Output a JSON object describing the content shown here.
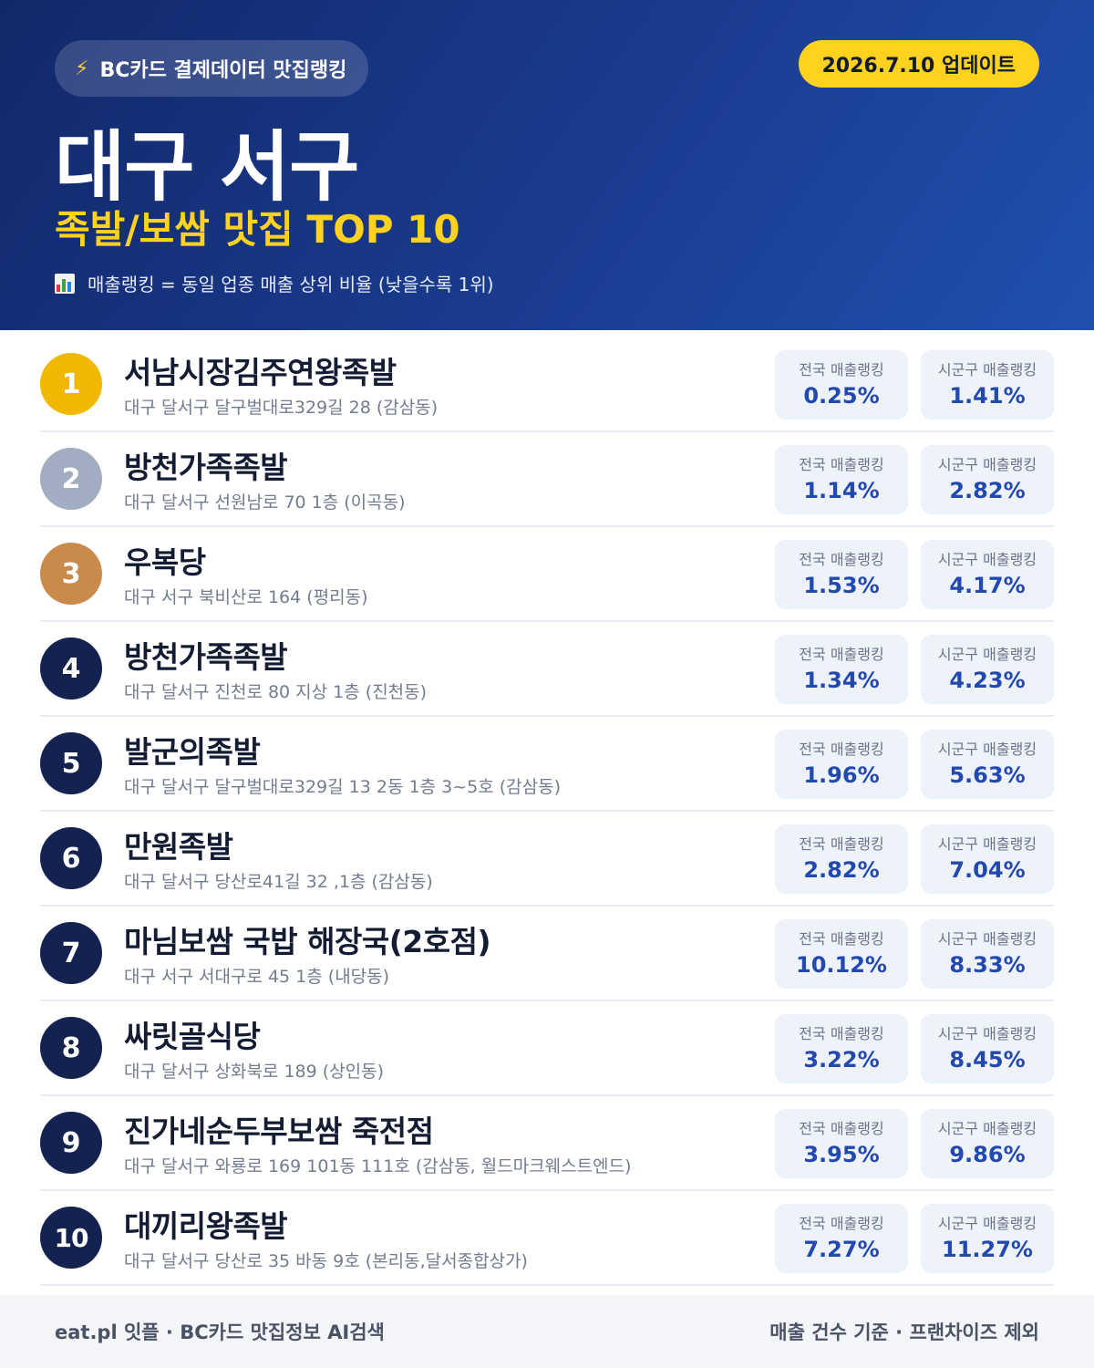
{
  "header": {
    "source_badge": "BC카드 결제데이터 맛집랭킹",
    "update_badge": "2026.7.10 업데이트",
    "title": "대구 서구",
    "subtitle": "족발/보쌈 맛집 TOP 10",
    "note": "매출랭킹 = 동일 업종 매출 상위 비율 (낮을수록 1위)"
  },
  "labels": {
    "national": "전국 매출랭킹",
    "local": "시군구 매출랭킹"
  },
  "restaurants": [
    {
      "rank": "1",
      "name": "서남시장김주연왕족발",
      "address": "대구 달서구 달구벌대로329길 28 (감삼동)",
      "national": "0.25%",
      "local": "1.41%"
    },
    {
      "rank": "2",
      "name": "방천가족족발",
      "address": "대구 달서구 선원남로 70 1층 (이곡동)",
      "national": "1.14%",
      "local": "2.82%"
    },
    {
      "rank": "3",
      "name": "우복당",
      "address": "대구 서구 북비산로 164 (평리동)",
      "national": "1.53%",
      "local": "4.17%"
    },
    {
      "rank": "4",
      "name": "방천가족족발",
      "address": "대구 달서구 진천로 80 지상 1층 (진천동)",
      "national": "1.34%",
      "local": "4.23%"
    },
    {
      "rank": "5",
      "name": "발군의족발",
      "address": "대구 달서구 달구벌대로329길 13 2동 1층 3~5호 (감삼동)",
      "national": "1.96%",
      "local": "5.63%"
    },
    {
      "rank": "6",
      "name": "만원족발",
      "address": "대구 달서구 당산로41길 32 ,1층 (감삼동)",
      "national": "2.82%",
      "local": "7.04%"
    },
    {
      "rank": "7",
      "name": "마님보쌈 국밥 해장국(2호점)",
      "address": "대구 서구 서대구로 45 1층 (내당동)",
      "national": "10.12%",
      "local": "8.33%"
    },
    {
      "rank": "8",
      "name": "싸릿골식당",
      "address": "대구 달서구 상화북로 189 (상인동)",
      "national": "3.22%",
      "local": "8.45%"
    },
    {
      "rank": "9",
      "name": "진가네순두부보쌈 죽전점",
      "address": "대구 달서구 와룡로 169 101동 111호 (감삼동, 월드마크웨스트엔드)",
      "national": "3.95%",
      "local": "9.86%"
    },
    {
      "rank": "10",
      "name": "대끼리왕족발",
      "address": "대구 달서구 당산로 35 바동 9호 (본리동,달서종합상가)",
      "national": "7.27%",
      "local": "11.27%"
    }
  ],
  "footer": {
    "left": "eat.pl 잇플 · BC카드 맛집정보 AI검색",
    "right": "매출 건수 기준 · 프랜차이즈 제외"
  },
  "colors": {
    "header_dark": "#12286a",
    "header_light": "#2050b0",
    "accent_yellow": "#ffd21f",
    "rank_gold": "#f1b800",
    "rank_silver": "#a2adc1",
    "rank_bronze": "#c98a4b",
    "rank_default": "#14224f",
    "stat_value": "#2149b0"
  },
  "icons": {
    "source_badge": "lightning-bolt-icon",
    "note": "bar-chart-icon"
  }
}
